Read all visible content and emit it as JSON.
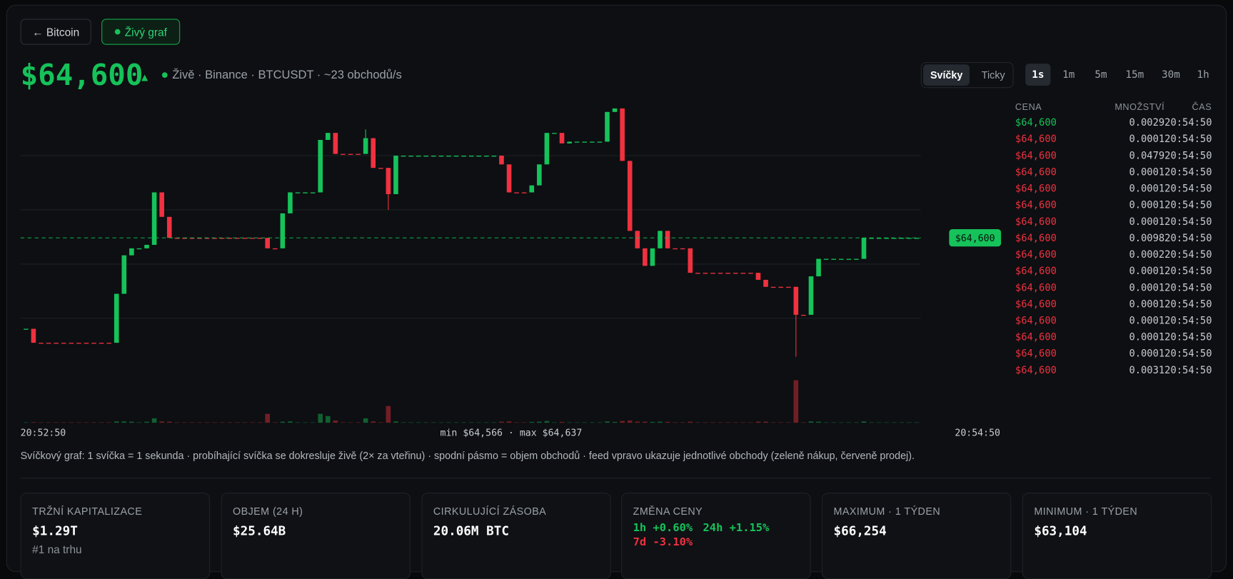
{
  "nav": {
    "back": "← Bitcoin",
    "live": "Živý graf"
  },
  "header": {
    "price": "$64,600",
    "arrow": "▲",
    "status": "Živě · Binance · BTCUSDT · ~23 obchodů/s"
  },
  "modes": [
    "Svíčky",
    "Ticky"
  ],
  "intervals": [
    "1s",
    "1m",
    "5m",
    "15m",
    "30m",
    "1h"
  ],
  "chart_data": {
    "type": "candlestick",
    "up_color": "#16c25a",
    "down_color": "#f0313f",
    "ylim": [
      64566,
      64637
    ],
    "yticks": [
      64577,
      64592.5,
      64608,
      64623.5
    ],
    "grid": true,
    "volume_lim": [
      0,
      2
    ],
    "current": {
      "value": 64600,
      "label": "$64,600"
    },
    "time_start": "20:52:50",
    "time_end": "20:54:50",
    "range_label": "min $64,566 · max $64,637",
    "candles": [
      [
        64574,
        64574,
        64574,
        64574
      ],
      [
        64574,
        64574,
        64570,
        64570
      ],
      [
        64570,
        64570,
        64570,
        64570
      ],
      [
        64570,
        64570,
        64570,
        64570
      ],
      [
        64570,
        64570,
        64570,
        64570
      ],
      [
        64570,
        64570,
        64570,
        64570
      ],
      [
        64570,
        64570,
        64570,
        64570
      ],
      [
        64570,
        64570,
        64570,
        64570
      ],
      [
        64570,
        64570,
        64570,
        64570
      ],
      [
        64570,
        64570,
        64570,
        64570
      ],
      [
        64570,
        64570,
        64570,
        64570
      ],
      [
        64570,
        64570,
        64570,
        64570
      ],
      [
        64570,
        64584,
        64570,
        64584
      ],
      [
        64584,
        64595,
        64584,
        64595
      ],
      [
        64595,
        64597,
        64595,
        64597
      ],
      [
        64597,
        64597,
        64597,
        64597
      ],
      [
        64597,
        64598,
        64597,
        64598
      ],
      [
        64598,
        64613,
        64598,
        64613
      ],
      [
        64613,
        64613,
        64606,
        64606
      ],
      [
        64606,
        64606,
        64600,
        64600
      ],
      [
        64600,
        64600,
        64600,
        64600
      ],
      [
        64600,
        64600,
        64600,
        64600
      ],
      [
        64600,
        64600,
        64600,
        64600
      ],
      [
        64600,
        64600,
        64600,
        64600
      ],
      [
        64600,
        64600,
        64600,
        64600
      ],
      [
        64600,
        64600,
        64600,
        64600
      ],
      [
        64600,
        64600,
        64600,
        64600
      ],
      [
        64600,
        64600,
        64600,
        64600
      ],
      [
        64600,
        64600,
        64600,
        64600
      ],
      [
        64600,
        64600,
        64600,
        64600
      ],
      [
        64600,
        64600,
        64600,
        64600
      ],
      [
        64600,
        64600,
        64600,
        64600
      ],
      [
        64600,
        64600,
        64597,
        64597
      ],
      [
        64597,
        64597,
        64597,
        64597
      ],
      [
        64597,
        64607,
        64597,
        64607
      ],
      [
        64607,
        64613,
        64607,
        64613
      ],
      [
        64613,
        64613,
        64613,
        64613
      ],
      [
        64613,
        64613,
        64613,
        64613
      ],
      [
        64613,
        64613,
        64613,
        64613
      ],
      [
        64613,
        64628,
        64613,
        64628
      ],
      [
        64628,
        64630,
        64628,
        64630
      ],
      [
        64630,
        64630,
        64624,
        64624
      ],
      [
        64624,
        64624,
        64624,
        64624
      ],
      [
        64624,
        64624,
        64624,
        64624
      ],
      [
        64624,
        64624,
        64624,
        64624
      ],
      [
        64624,
        64631,
        64624,
        64628.5
      ],
      [
        64628.5,
        64628.5,
        64620,
        64620
      ],
      [
        64620,
        64620,
        64620,
        64620
      ],
      [
        64620,
        64620,
        64608,
        64612.5
      ],
      [
        64612.5,
        64623.5,
        64612.5,
        64623.5
      ],
      [
        64623.5,
        64623.5,
        64623.5,
        64623.5
      ],
      [
        64623.5,
        64623.5,
        64623.5,
        64623.5
      ],
      [
        64623.5,
        64623.5,
        64623.5,
        64623.5
      ],
      [
        64623.5,
        64623.5,
        64623.5,
        64623.5
      ],
      [
        64623.5,
        64623.5,
        64623.5,
        64623.5
      ],
      [
        64623.5,
        64623.5,
        64623.5,
        64623.5
      ],
      [
        64623.5,
        64623.5,
        64623.5,
        64623.5
      ],
      [
        64623.5,
        64623.5,
        64623.5,
        64623.5
      ],
      [
        64623.5,
        64623.5,
        64623.5,
        64623.5
      ],
      [
        64623.5,
        64623.5,
        64623.5,
        64623.5
      ],
      [
        64623.5,
        64623.5,
        64623.5,
        64623.5
      ],
      [
        64623.5,
        64623.5,
        64623.5,
        64623.5
      ],
      [
        64623.5,
        64623.5,
        64623.5,
        64623.5
      ],
      [
        64623.5,
        64623.5,
        64621,
        64621
      ],
      [
        64621,
        64621,
        64613,
        64613
      ],
      [
        64613,
        64613,
        64613,
        64613
      ],
      [
        64613,
        64613,
        64613,
        64613
      ],
      [
        64613,
        64615,
        64613,
        64615
      ],
      [
        64615,
        64621,
        64615,
        64621
      ],
      [
        64621,
        64630,
        64621,
        64630
      ],
      [
        64630,
        64630,
        64630,
        64630
      ],
      [
        64630,
        64630,
        64627,
        64627
      ],
      [
        64627,
        64627.5,
        64627,
        64627.5
      ],
      [
        64627.5,
        64627.5,
        64627.5,
        64627.5
      ],
      [
        64627.5,
        64627.5,
        64627.5,
        64627.5
      ],
      [
        64627.5,
        64627.5,
        64627.5,
        64627.5
      ],
      [
        64627.5,
        64627.5,
        64627.5,
        64627.5
      ],
      [
        64627.5,
        64636,
        64627.5,
        64636
      ],
      [
        64636,
        64637,
        64636,
        64637
      ],
      [
        64637,
        64637,
        64622,
        64622
      ],
      [
        64622,
        64622,
        64602,
        64602
      ],
      [
        64602,
        64602,
        64597,
        64597
      ],
      [
        64597,
        64597,
        64592,
        64592
      ],
      [
        64592,
        64597,
        64592,
        64597
      ],
      [
        64597,
        64602,
        64597,
        64602
      ],
      [
        64602,
        64602,
        64597,
        64597
      ],
      [
        64597,
        64597,
        64597,
        64597
      ],
      [
        64597,
        64597,
        64597,
        64597
      ],
      [
        64597,
        64597,
        64590,
        64590
      ],
      [
        64590,
        64590,
        64590,
        64590
      ],
      [
        64590,
        64590,
        64590,
        64590
      ],
      [
        64590,
        64590,
        64590,
        64590
      ],
      [
        64590,
        64590,
        64590,
        64590
      ],
      [
        64590,
        64590,
        64590,
        64590
      ],
      [
        64590,
        64590,
        64590,
        64590
      ],
      [
        64590,
        64590,
        64590,
        64590
      ],
      [
        64590,
        64590,
        64590,
        64590
      ],
      [
        64590,
        64590,
        64588,
        64588
      ],
      [
        64588,
        64588,
        64586,
        64586
      ],
      [
        64586,
        64586,
        64586,
        64586
      ],
      [
        64586,
        64586,
        64586,
        64586
      ],
      [
        64586,
        64586,
        64586,
        64586
      ],
      [
        64586,
        64586,
        64566,
        64578
      ],
      [
        64578,
        64578,
        64578,
        64578
      ],
      [
        64578,
        64589,
        64578,
        64589
      ],
      [
        64589,
        64594,
        64589,
        64594
      ],
      [
        64594,
        64594,
        64594,
        64594
      ],
      [
        64594,
        64594,
        64594,
        64594
      ],
      [
        64594,
        64594,
        64594,
        64594
      ],
      [
        64594,
        64594,
        64594,
        64594
      ],
      [
        64594,
        64594,
        64594,
        64594
      ],
      [
        64594,
        64600,
        64594,
        64600
      ],
      [
        64600,
        64600,
        64600,
        64600
      ],
      [
        64600,
        64600,
        64600,
        64600
      ],
      [
        64600,
        64600,
        64600,
        64600
      ],
      [
        64600,
        64600,
        64600,
        64600
      ],
      [
        64600,
        64600,
        64600,
        64600
      ],
      [
        64600,
        64600,
        64600,
        64600
      ],
      [
        64600,
        64600,
        64600,
        64600
      ]
    ],
    "volumes": [
      0.02,
      0.03,
      0.02,
      0.02,
      0.02,
      0.02,
      0.02,
      0.02,
      0.02,
      0.02,
      0.02,
      0.02,
      0.06,
      0.06,
      0.05,
      0.02,
      0.05,
      0.2,
      0.06,
      0.05,
      0.02,
      0.02,
      0.02,
      0.02,
      0.02,
      0.02,
      0.02,
      0.02,
      0.02,
      0.02,
      0.02,
      0.02,
      0.4,
      0.02,
      0.05,
      0.06,
      0.02,
      0.02,
      0.02,
      0.4,
      0.3,
      0.1,
      0.02,
      0.02,
      0.02,
      0.2,
      0.06,
      0.02,
      0.75,
      0.06,
      0.02,
      0.02,
      0.02,
      0.02,
      0.02,
      0.02,
      0.02,
      0.02,
      0.02,
      0.02,
      0.02,
      0.02,
      0.02,
      0.05,
      0.06,
      0.02,
      0.02,
      0.04,
      0.05,
      0.08,
      0.02,
      0.04,
      0.02,
      0.02,
      0.02,
      0.02,
      0.02,
      0.06,
      0.04,
      0.08,
      0.1,
      0.05,
      0.05,
      0.04,
      0.05,
      0.04,
      0.02,
      0.02,
      0.05,
      0.02,
      0.02,
      0.02,
      0.02,
      0.02,
      0.02,
      0.02,
      0.02,
      0.05,
      0.05,
      0.02,
      0.02,
      0.02,
      1.9,
      0.02,
      0.06,
      0.05,
      0.02,
      0.02,
      0.02,
      0.02,
      0.02,
      0.06,
      0.02,
      0.02,
      0.02,
      0.02,
      0.02,
      0.02,
      0.02
    ]
  },
  "feed": {
    "headers": [
      "CENA",
      "MNOŽSTVÍ",
      "ČAS"
    ],
    "rows": [
      {
        "price": "$64,600",
        "qty": "0.0029",
        "time": "20:54:50",
        "color": "#16c25a"
      },
      {
        "price": "$64,600",
        "qty": "0.0001",
        "time": "20:54:50",
        "color": "#f0313f"
      },
      {
        "price": "$64,600",
        "qty": "0.0479",
        "time": "20:54:50",
        "color": "#f0313f"
      },
      {
        "price": "$64,600",
        "qty": "0.0001",
        "time": "20:54:50",
        "color": "#f0313f"
      },
      {
        "price": "$64,600",
        "qty": "0.0001",
        "time": "20:54:50",
        "color": "#f0313f"
      },
      {
        "price": "$64,600",
        "qty": "0.0001",
        "time": "20:54:50",
        "color": "#f0313f"
      },
      {
        "price": "$64,600",
        "qty": "0.0001",
        "time": "20:54:50",
        "color": "#f0313f"
      },
      {
        "price": "$64,600",
        "qty": "0.0098",
        "time": "20:54:50",
        "color": "#f0313f"
      },
      {
        "price": "$64,600",
        "qty": "0.0002",
        "time": "20:54:50",
        "color": "#f0313f"
      },
      {
        "price": "$64,600",
        "qty": "0.0001",
        "time": "20:54:50",
        "color": "#f0313f"
      },
      {
        "price": "$64,600",
        "qty": "0.0001",
        "time": "20:54:50",
        "color": "#f0313f"
      },
      {
        "price": "$64,600",
        "qty": "0.0001",
        "time": "20:54:50",
        "color": "#f0313f"
      },
      {
        "price": "$64,600",
        "qty": "0.0001",
        "time": "20:54:50",
        "color": "#f0313f"
      },
      {
        "price": "$64,600",
        "qty": "0.0001",
        "time": "20:54:50",
        "color": "#f0313f"
      },
      {
        "price": "$64,600",
        "qty": "0.0001",
        "time": "20:54:50",
        "color": "#f0313f"
      },
      {
        "price": "$64,600",
        "qty": "0.0031",
        "time": "20:54:50",
        "color": "#f0313f"
      }
    ]
  },
  "note": "Svíčkový graf: 1 svíčka = 1 sekunda · probíhající svíčka se dokresluje živě (2× za vteřinu) · spodní pásmo = objem obchodů · feed vpravo ukazuje jednotlivé obchody (zeleně nákup, červeně prodej).",
  "cards": [
    {
      "label": "TRŽNÍ KAPITALIZACE",
      "value": "$1.29T",
      "sub": "#1 na trhu"
    },
    {
      "label": "OBJEM (24 H)",
      "value": "$25.64B"
    },
    {
      "label": "CIRKULUJÍCÍ ZÁSOBA",
      "value": "20.06M BTC"
    },
    {
      "label": "ZMĚNA CENY",
      "items": [
        {
          "text": "1h +0.60%",
          "color": "#16c25a"
        },
        {
          "text": "24h +1.15%",
          "color": "#16c25a"
        },
        {
          "text": "7d -3.10%",
          "color": "#f0313f"
        }
      ]
    },
    {
      "label": "MAXIMUM · 1 TÝDEN",
      "value": "$66,254"
    },
    {
      "label": "MINIMUM · 1 TÝDEN",
      "value": "$63,104"
    }
  ]
}
